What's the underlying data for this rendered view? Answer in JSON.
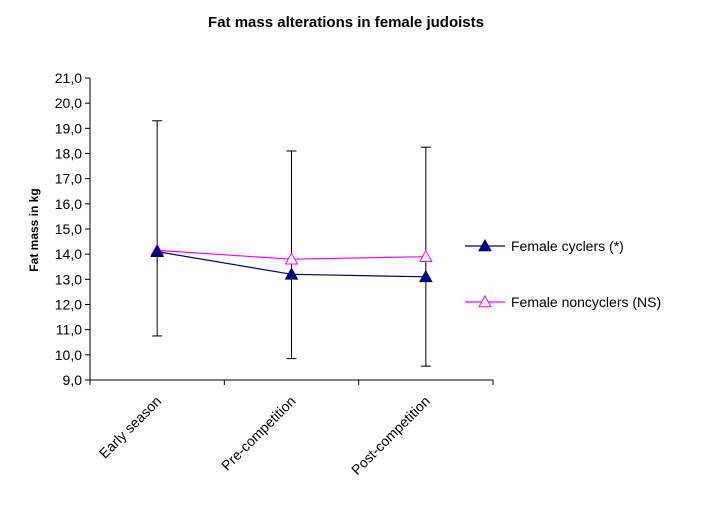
{
  "chart_data": {
    "type": "line",
    "title": "Fat mass alterations in female judoists",
    "xlabel": "",
    "ylabel": "Fat mass in kg",
    "categories": [
      "Early season",
      "Pre-competition",
      "Post-competition"
    ],
    "ylim": [
      9.0,
      21.0
    ],
    "yticks": [
      "9,0",
      "10,0",
      "11,0",
      "12,0",
      "13,0",
      "14,0",
      "15,0",
      "16,0",
      "17,0",
      "18,0",
      "19,0",
      "20,0",
      "21,0"
    ],
    "grid": false,
    "legend_position": "right",
    "series": [
      {
        "name": "Female cyclers (*)",
        "values": [
          14.1,
          13.2,
          13.1
        ],
        "error_low": [
          10.75,
          9.85,
          9.55
        ],
        "error_high": [
          19.3,
          18.1,
          18.25
        ],
        "color": "#000080",
        "marker": "filled-triangle"
      },
      {
        "name": "Female noncyclers (NS)",
        "values": [
          14.15,
          13.8,
          13.9
        ],
        "color": "#ff00ff",
        "marker": "open-triangle"
      }
    ]
  }
}
